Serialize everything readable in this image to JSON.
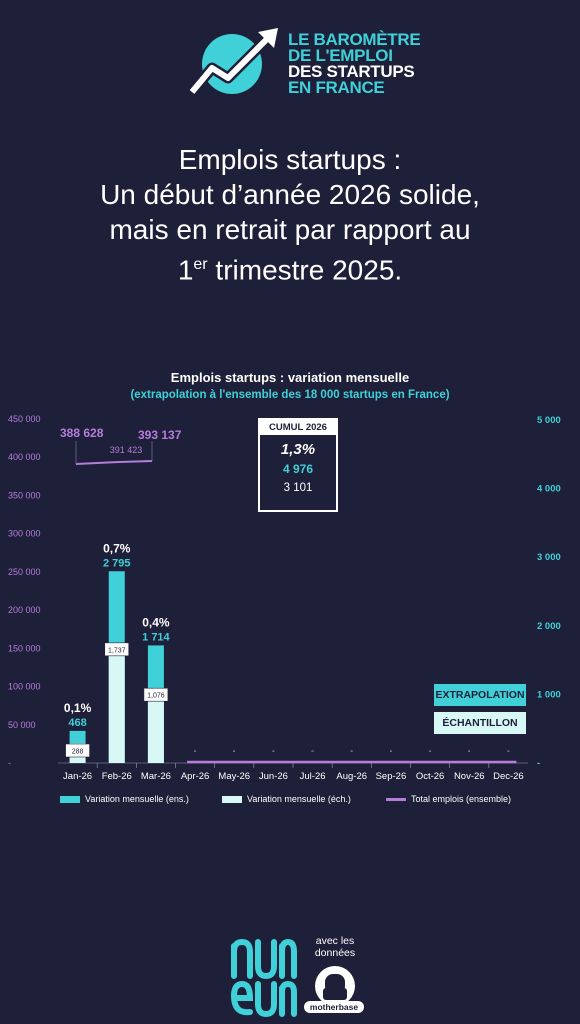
{
  "logo": {
    "line1": "LE BAROMÈTRE",
    "line2": "DE L'EMPLOI",
    "line3": "DES STARTUPS",
    "line4": "EN FRANCE"
  },
  "headline": {
    "line1": "Emplois startups :",
    "line2": "Un début d’année 2026 solide,",
    "line3": "mais en retrait par rapport au",
    "line4_pre": "1",
    "line4_sup": "er",
    "line4_post": " trimestre 2025."
  },
  "chart_data": {
    "type": "bar",
    "title": "Emplois startups : variation mensuelle",
    "subtitle": "(extrapolation à l'ensemble des 18 000 startups en France)",
    "categories": [
      "Jan-26",
      "Feb-26",
      "Mar-26",
      "Apr-26",
      "May-26",
      "Jun-26",
      "Jul-26",
      "Aug-26",
      "Sep-26",
      "Oct-26",
      "Nov-26",
      "Dec-26"
    ],
    "series": [
      {
        "name": "Variation mensuelle (ens.)",
        "axis": "right",
        "values": [
          468,
          2795,
          1714,
          null,
          null,
          null,
          null,
          null,
          null,
          null,
          null,
          null
        ],
        "labels": [
          "468",
          "2 795",
          "1 714"
        ]
      },
      {
        "name": "Variation mensuelle (éch.)",
        "axis": "right",
        "values": [
          288,
          1737,
          1076,
          null,
          null,
          null,
          null,
          null,
          null,
          null,
          null,
          null
        ],
        "labels": [
          "288",
          "1,737",
          "1,076"
        ]
      },
      {
        "name": "Total emplois (ensemble)",
        "type": "line",
        "axis": "left",
        "values": [
          388628,
          391423,
          393137,
          null,
          null,
          null,
          null,
          null,
          null,
          null,
          null,
          null
        ],
        "labels": [
          "388 628",
          "391 423",
          "393 137"
        ]
      }
    ],
    "pct_labels": [
      "0,1%",
      "0,7%",
      "0,4%"
    ],
    "left_axis": {
      "ylim": [
        0,
        450000
      ],
      "ticks": [
        "-",
        "50 000",
        "100 000",
        "150 000",
        "200 000",
        "250 000",
        "300 000",
        "350 000",
        "400 000",
        "450 000"
      ]
    },
    "right_axis": {
      "ylim": [
        0,
        5000
      ],
      "ticks": [
        "-",
        "1 000",
        "2 000",
        "3 000",
        "4 000",
        "5 000"
      ]
    },
    "legend_position": "bottom",
    "colors": {
      "extrapolation": "#3fd0d8",
      "echantillon": "#d8f8f6",
      "total": "#b57edc"
    }
  },
  "legend": {
    "item1": "Variation mensuelle (ens.)",
    "item2": "Variation mensuelle (éch.)",
    "item3": "Total emplois (ensemble)"
  },
  "cumul": {
    "title": "CUMUL 2026",
    "pct": "1,3%",
    "extrapolation": "4 976",
    "echantillon": "3 101"
  },
  "tags": {
    "extrapolation": "EXTRAPOLATION",
    "echantillon": "ÉCHANTILLON"
  },
  "footer": {
    "partner_line1": "avec les",
    "partner_line2": "données",
    "partner_name": "motherbase"
  },
  "colors": {
    "background": "#1e1f38",
    "accent": "#3fd0d8",
    "light": "#d8f8f6",
    "purple": "#b57edc"
  }
}
